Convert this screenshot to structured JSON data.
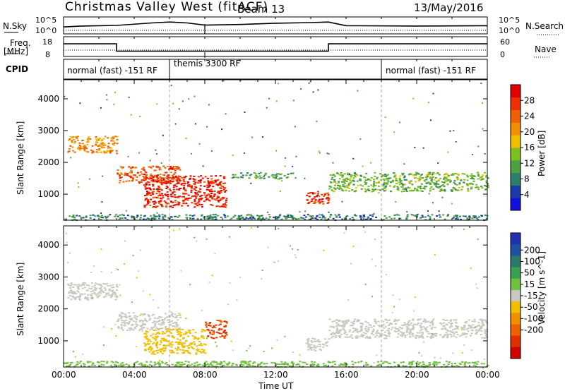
{
  "header": {
    "title": "Christmas Valley West (fitACF)",
    "beam": "Beam 13",
    "date": "13/May/2016"
  },
  "strip_labels": {
    "nsky": "N.Sky",
    "nsearch": "N.Search",
    "freq": "Freq.",
    "freq_unit": "[MHz]",
    "nave": "Nave",
    "cpid": "CPID"
  },
  "strip_ticks": {
    "sky_top": "10^5",
    "sky_bot": "10^0",
    "search_top": "10^5",
    "search_bot": "10^0",
    "freq_top": "18",
    "freq_bot": "8",
    "nave_top": "60",
    "nave_bot": "0"
  },
  "cpid_segments": [
    {
      "label": "normal (fast) -151 RF",
      "start": "00:00",
      "end": "06:00"
    },
    {
      "label": "themis 3300 RF",
      "start": "06:00",
      "end": "18:00"
    },
    {
      "label": "normal (fast) -151 RF",
      "start": "18:00",
      "end": "24:00"
    }
  ],
  "xlabel": "Time UT",
  "xticks": [
    "00:00",
    "04:00",
    "08:00",
    "12:00",
    "16:00",
    "20:00",
    "00:00"
  ],
  "ylabel": "Slant Range [km]",
  "yticks": [
    "1000",
    "2000",
    "3000",
    "4000"
  ],
  "power_bar": {
    "label": "Power [dB]",
    "ticks": [
      "4",
      "8",
      "12",
      "16",
      "20",
      "24",
      "28"
    ],
    "colors": [
      "#1010e0",
      "#1c3ca8",
      "#2e7f6a",
      "#4ea040",
      "#7cc020",
      "#f0c000",
      "#f09000",
      "#f06000",
      "#f03000",
      "#e00000"
    ]
  },
  "velocity_bar": {
    "label": "Velocity [m s^-1]",
    "ticks": [
      "200",
      "100",
      "50",
      "15",
      "-15",
      "-50",
      "-100",
      "-200"
    ],
    "colors": [
      "#2030b0",
      "#2050a0",
      "#2a7a6a",
      "#3aa050",
      "#70c040",
      "#c8c8c0",
      "#f0c000",
      "#f09000",
      "#f06000",
      "#e03000",
      "#d00000"
    ]
  },
  "chart_data": [
    {
      "type": "line",
      "title": "Christmas Valley West (fitACF)",
      "series": [
        {
          "name": "N.Sky",
          "x": [
            "00:00",
            "01:00",
            "03:00",
            "05:00",
            "06:00",
            "07:00",
            "08:00",
            "10:00",
            "12:00",
            "14:00",
            "15:00",
            "16:00",
            "20:00",
            "24:00"
          ],
          "values": [
            2.0,
            2.3,
            2.5,
            3.3,
            3.6,
            3.3,
            2.6,
            2.8,
            3.2,
            3.4,
            3.6,
            2.4,
            2.3,
            2.4
          ]
        }
      ]
    },
    {
      "type": "line",
      "series": [
        {
          "name": "Freq.",
          "x": [
            "00:00",
            "03:00",
            "03:00",
            "15:00",
            "15:00",
            "24:00"
          ],
          "values": [
            14.5,
            14.5,
            10.5,
            10.5,
            14.5,
            14.5
          ]
        }
      ]
    },
    {
      "type": "heatmap",
      "xlabel": "Time UT",
      "ylabel": "Slant Range [km]",
      "xlim": [
        "00:00",
        "24:00"
      ],
      "ylim": [
        180,
        4600
      ],
      "colorbar": "Power [dB]",
      "regions": [
        {
          "t0": 0.2,
          "t1": 3.0,
          "r0": 2300,
          "r1": 2850,
          "value": 20
        },
        {
          "t0": 3.0,
          "t1": 6.6,
          "r0": 1350,
          "r1": 1900,
          "value": 24
        },
        {
          "t0": 4.5,
          "t1": 9.2,
          "r0": 600,
          "r1": 1600,
          "value": 27
        },
        {
          "t0": 9.5,
          "t1": 13.0,
          "r0": 1500,
          "r1": 1700,
          "value": 10
        },
        {
          "t0": 13.7,
          "t1": 15.0,
          "r0": 700,
          "r1": 1100,
          "value": 26
        },
        {
          "t0": 15.0,
          "t1": 24.0,
          "r0": 1100,
          "r1": 1700,
          "value": 12
        },
        {
          "t0": 0.0,
          "t1": 24.0,
          "r0": 200,
          "r1": 380,
          "value": 8
        }
      ]
    },
    {
      "type": "heatmap",
      "xlabel": "Time UT",
      "ylabel": "Slant Range [km]",
      "xlim": [
        "00:00",
        "24:00"
      ],
      "ylim": [
        180,
        4600
      ],
      "colorbar": "Velocity [m s^-1]",
      "regions": [
        {
          "t0": 0.2,
          "t1": 3.0,
          "r0": 2300,
          "r1": 2850,
          "value": 0
        },
        {
          "t0": 3.0,
          "t1": 6.6,
          "r0": 1350,
          "r1": 1900,
          "value": 0
        },
        {
          "t0": 4.5,
          "t1": 8.0,
          "r0": 600,
          "r1": 1400,
          "value": -40
        },
        {
          "t0": 8.0,
          "t1": 9.2,
          "r0": 1100,
          "r1": 1700,
          "value": -150
        },
        {
          "t0": 13.7,
          "t1": 15.0,
          "r0": 700,
          "r1": 1100,
          "value": 0
        },
        {
          "t0": 15.0,
          "t1": 24.0,
          "r0": 1100,
          "r1": 1700,
          "value": 0
        },
        {
          "t0": 0.0,
          "t1": 24.0,
          "r0": 200,
          "r1": 380,
          "value": 20
        }
      ]
    }
  ]
}
